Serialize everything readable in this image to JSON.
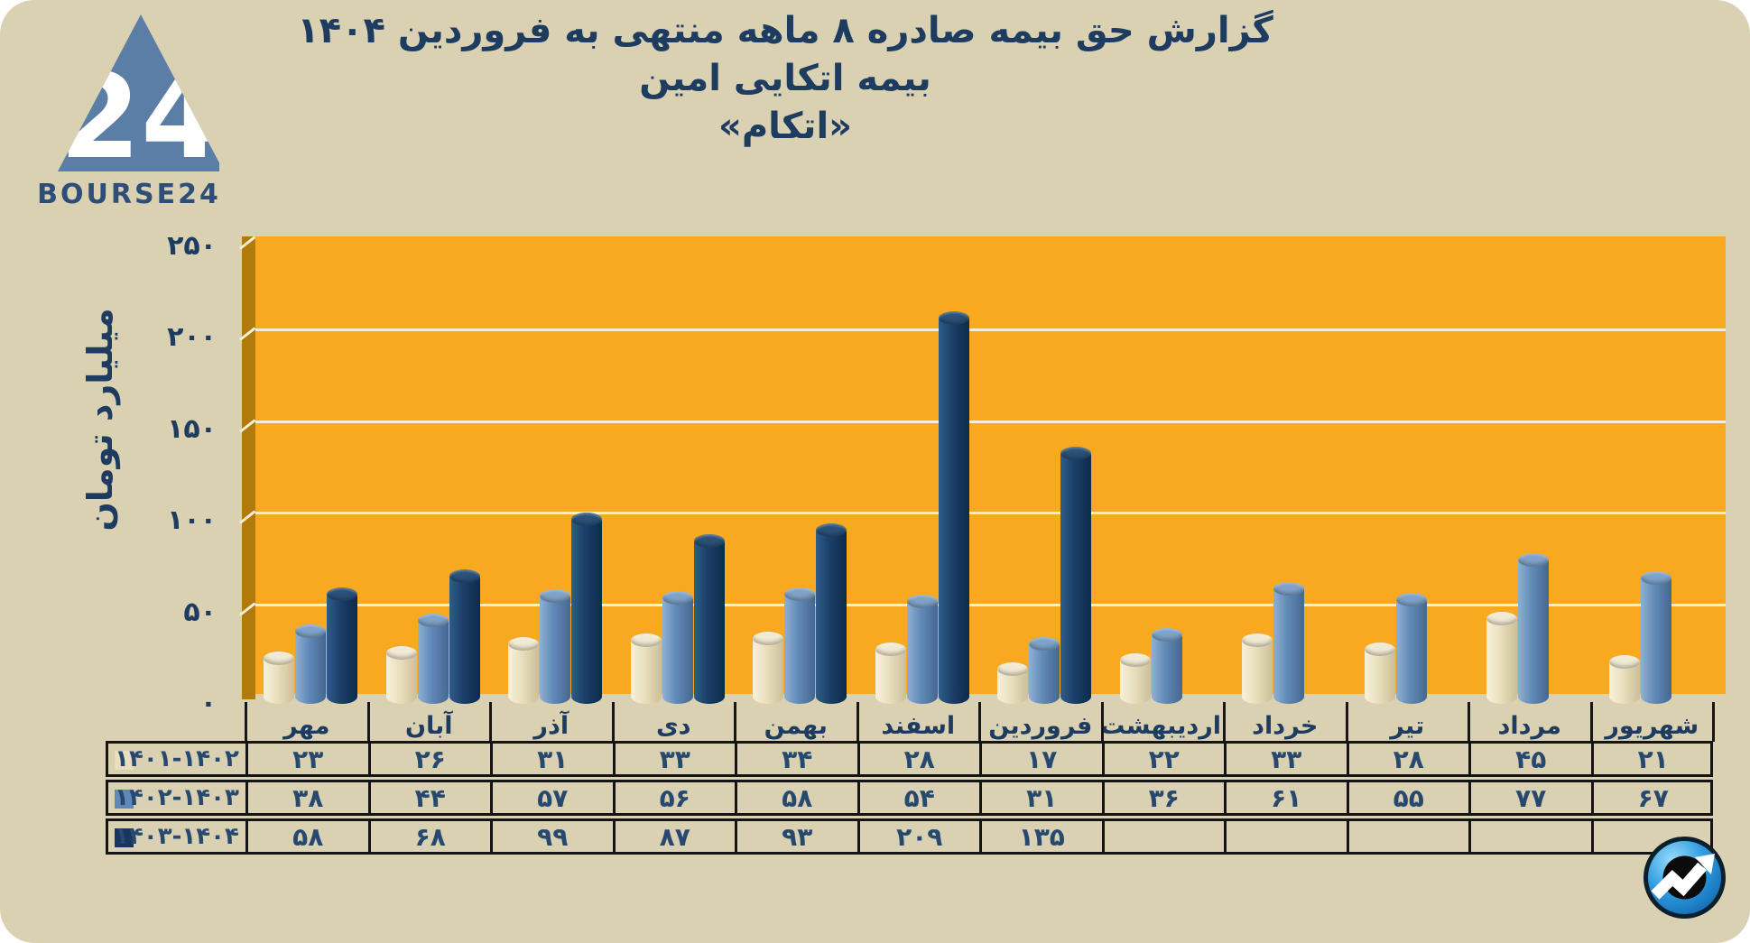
{
  "logo": {
    "brand_text": "BOURSE24",
    "mark_number": "24",
    "triangle_color": "#5b7ea6"
  },
  "title": {
    "line1": "گزارش  حق بیمه صادره ۸ ماهه منتهی به فروردین ۱۴۰۴",
    "line2": "بیمه اتکایی امین",
    "line3": "«اتکام»"
  },
  "y_axis": {
    "label": "میلیارد تومان",
    "ticks": [
      250,
      200,
      150,
      100,
      50,
      0
    ]
  },
  "chart_data": {
    "type": "bar",
    "style": "3d-cylinder",
    "title": "گزارش  حق بیمه صادره ۸ ماهه منتهی به فروردین ۱۴۰۴ - بیمه اتکایی امین «اتکام»",
    "ylabel": "میلیارد تومان",
    "ylim": [
      0,
      250
    ],
    "grid": true,
    "gridline_step": 50,
    "plot_bg": "#f8a91f",
    "wall_color": "#b27a0a",
    "gridline_color": "#f6eed6",
    "legend_position": "table-rows",
    "categories": [
      "مهر",
      "آبان",
      "آذر",
      "دی",
      "بهمن",
      "اسفند",
      "فروردین",
      "اردیبهشت",
      "خرداد",
      "تیر",
      "مرداد",
      "شهریور"
    ],
    "series": [
      {
        "name": "۱۴۰۱-۱۴۰۲",
        "color": "#e9dfbe",
        "values": [
          23,
          26,
          31,
          33,
          34,
          28,
          17,
          22,
          33,
          28,
          45,
          21
        ]
      },
      {
        "name": "۱۴۰۲-۱۴۰۳",
        "color": "#6189b8",
        "values": [
          38,
          44,
          57,
          56,
          58,
          54,
          31,
          36,
          61,
          55,
          77,
          67
        ]
      },
      {
        "name": "۱۴۰۳-۱۴۰۴",
        "color": "#17375e",
        "values": [
          58,
          68,
          99,
          87,
          93,
          209,
          135,
          null,
          null,
          null,
          null,
          null
        ]
      }
    ]
  },
  "watermark": {
    "icon": "trend-arrow-icon"
  }
}
